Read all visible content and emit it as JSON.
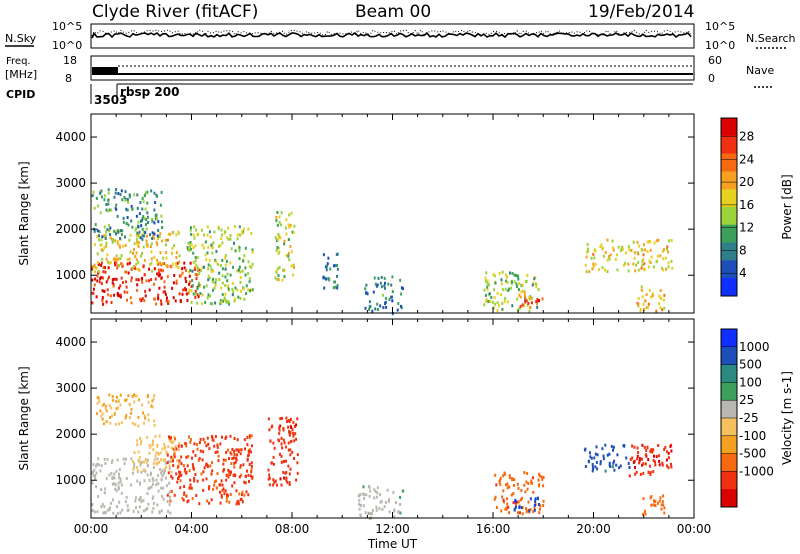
{
  "header": {
    "station": "Clyde River (fitACF)",
    "beam": "Beam 00",
    "date": "19/Feb/2014"
  },
  "top_panels": {
    "nsky_label": "N.Sky",
    "nsky_ticks": [
      "10^5",
      "10^0"
    ],
    "nsearch_label": "N.Search",
    "nsearch_ticks": [
      "10^5",
      "10^0"
    ],
    "freq_label": "Freq.",
    "freq_unit": "[MHz]",
    "freq_ticks": [
      "18",
      "8"
    ],
    "nave_label": "Nave",
    "nave_ticks": [
      "60",
      "0"
    ],
    "cpid_label": "CPID",
    "cpid_values": [
      "3503",
      "rbsp 200"
    ]
  },
  "chart_data": [
    {
      "type": "heatmap",
      "name": "power-panel",
      "xlabel": "",
      "ylabel": "Slant Range [km]",
      "xlim": [
        0,
        24
      ],
      "ylim": [
        180,
        4500
      ],
      "yticks": [
        "1000",
        "2000",
        "3000",
        "4000"
      ],
      "colorbar": {
        "label": "Power [dB]",
        "ticks": [
          "4",
          "8",
          "12",
          "16",
          "20",
          "24",
          "28"
        ],
        "colors": [
          "#1030ff",
          "#1e4fb8",
          "#2f7f8a",
          "#3aa05a",
          "#9ad33a",
          "#e8d020",
          "#f5a020",
          "#f56a10",
          "#f03010",
          "#d80000"
        ]
      },
      "regions": [
        {
          "t0": 0.0,
          "t1": 4.3,
          "r0": 400,
          "r1": 1300,
          "value": 28
        },
        {
          "t0": 0.0,
          "t1": 3.5,
          "r0": 1100,
          "r1": 2000,
          "value": 18
        },
        {
          "t0": 0.0,
          "t1": 2.8,
          "r0": 1800,
          "r1": 2900,
          "value": 10
        },
        {
          "t0": 3.8,
          "t1": 6.4,
          "r0": 400,
          "r1": 2100,
          "value": 14
        },
        {
          "t0": 7.3,
          "t1": 8.1,
          "r0": 900,
          "r1": 2400,
          "value": 16
        },
        {
          "t0": 9.2,
          "t1": 9.9,
          "r0": 700,
          "r1": 1500,
          "value": 8
        },
        {
          "t0": 10.8,
          "t1": 12.4,
          "r0": 200,
          "r1": 1000,
          "value": 8
        },
        {
          "t0": 15.6,
          "t1": 17.8,
          "r0": 250,
          "r1": 1100,
          "value": 14
        },
        {
          "t0": 17.0,
          "t1": 18.0,
          "r0": 300,
          "r1": 700,
          "value": 24
        },
        {
          "t0": 19.6,
          "t1": 23.1,
          "r0": 1100,
          "r1": 1800,
          "value": 18
        },
        {
          "t0": 21.7,
          "t1": 22.8,
          "r0": 200,
          "r1": 800,
          "value": 20
        }
      ]
    },
    {
      "type": "heatmap",
      "name": "velocity-panel",
      "xlabel": "Time UT",
      "ylabel": "Slant Range [km]",
      "xlim": [
        0,
        24
      ],
      "ylim": [
        180,
        4500
      ],
      "xticks": [
        "00:00",
        "04:00",
        "08:00",
        "12:00",
        "16:00",
        "20:00",
        "00:00"
      ],
      "yticks": [
        "1000",
        "2000",
        "3000",
        "4000"
      ],
      "colorbar": {
        "label": "Velocity [m s-1]",
        "ticks": [
          "1000",
          "500",
          "100",
          "25",
          "-25",
          "-100",
          "-500",
          "-1000"
        ],
        "colors": [
          "#1030ff",
          "#1e4fb8",
          "#2a8a80",
          "#3aa05a",
          "#b8b8b0",
          "#f5c060",
          "#f5a020",
          "#f56a10",
          "#f03010",
          "#d80000"
        ]
      },
      "regions": [
        {
          "t0": 0.0,
          "t1": 3.2,
          "r0": 300,
          "r1": 1500,
          "value": 60
        },
        {
          "t0": 1.6,
          "t1": 3.5,
          "r0": 1200,
          "r1": 2000,
          "value": 0
        },
        {
          "t0": 0.2,
          "t1": 2.6,
          "r0": 2200,
          "r1": 2900,
          "value": -20
        },
        {
          "t0": 3.0,
          "t1": 6.4,
          "r0": 500,
          "r1": 2000,
          "value": -300
        },
        {
          "t0": 7.0,
          "t1": 8.2,
          "r0": 900,
          "r1": 2400,
          "value": -400
        },
        {
          "t0": 10.6,
          "t1": 12.4,
          "r0": 200,
          "r1": 900,
          "value": 80
        },
        {
          "t0": 16.0,
          "t1": 18.0,
          "r0": 300,
          "r1": 1200,
          "value": -200
        },
        {
          "t0": 16.8,
          "t1": 17.8,
          "r0": 350,
          "r1": 650,
          "value": 900
        },
        {
          "t0": 19.6,
          "t1": 21.4,
          "r0": 1200,
          "r1": 1800,
          "value": 700
        },
        {
          "t0": 21.4,
          "t1": 23.1,
          "r0": 1100,
          "r1": 1800,
          "value": -450
        },
        {
          "t0": 21.9,
          "t1": 22.8,
          "r0": 250,
          "r1": 700,
          "value": -150
        }
      ]
    }
  ]
}
